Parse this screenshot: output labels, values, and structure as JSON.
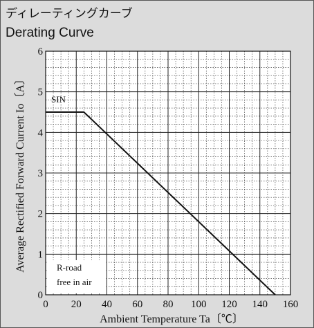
{
  "title_jp": "ディレーティングカーブ",
  "title_en": "Derating Curve",
  "chart_data": {
    "type": "line",
    "xlabel": "Ambient Temperature  Ta〔℃〕",
    "ylabel": "Average Rectified Forward Current  Io〔A〕",
    "xlim": [
      0,
      160
    ],
    "ylim": [
      0,
      6
    ],
    "x_ticks": [
      "0",
      "20",
      "40",
      "60",
      "80",
      "100",
      "120",
      "140",
      "160"
    ],
    "y_ticks": [
      "0",
      "1",
      "2",
      "3",
      "4",
      "5",
      "6"
    ],
    "grid": true,
    "series": [
      {
        "name": "SIN",
        "x": [
          0,
          25,
          150
        ],
        "y": [
          4.5,
          4.5,
          0
        ]
      }
    ],
    "annotations": [
      "R-road",
      "free in air"
    ]
  }
}
